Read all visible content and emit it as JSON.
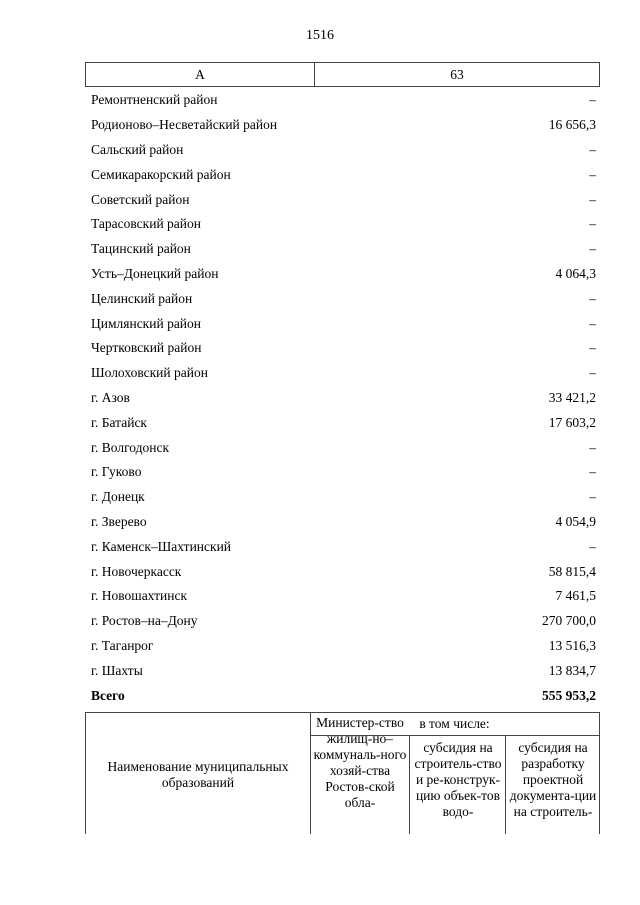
{
  "page_number": "1516",
  "header": {
    "col_a": "А",
    "col_b": "63"
  },
  "rows": [
    {
      "name": "Ремонтненский район",
      "value": "–"
    },
    {
      "name": "Родионово–Несветайский район",
      "value": "16 656,3"
    },
    {
      "name": "Сальский район",
      "value": "–"
    },
    {
      "name": "Семикаракорский район",
      "value": "–"
    },
    {
      "name": "Советский район",
      "value": "–"
    },
    {
      "name": "Тарасовский район",
      "value": "–"
    },
    {
      "name": "Тацинский район",
      "value": "–"
    },
    {
      "name": "Усть–Донецкий район",
      "value": "4 064,3"
    },
    {
      "name": "Целинский район",
      "value": "–"
    },
    {
      "name": "Цимлянский район",
      "value": "–"
    },
    {
      "name": "Чертковский район",
      "value": "–"
    },
    {
      "name": "Шолоховский район",
      "value": "–"
    },
    {
      "name": "г. Азов",
      "value": "33 421,2"
    },
    {
      "name": "г. Батайск",
      "value": "17 603,2"
    },
    {
      "name": "г. Волгодонск",
      "value": "–"
    },
    {
      "name": "г. Гуково",
      "value": "–"
    },
    {
      "name": "г. Донецк",
      "value": "–"
    },
    {
      "name": "г. Зверево",
      "value": "4 054,9"
    },
    {
      "name": "г. Каменск–Шахтинский",
      "value": "–"
    },
    {
      "name": "г. Новочеркасск",
      "value": "58 815,4"
    },
    {
      "name": "г. Новошахтинск",
      "value": "7 461,5"
    },
    {
      "name": "г. Ростов–на–Дону",
      "value": "270 700,0"
    },
    {
      "name": "г. Таганрог",
      "value": "13 516,3"
    },
    {
      "name": "г. Шахты",
      "value": "13 834,7"
    }
  ],
  "total": {
    "name": "Всего",
    "value": "555 953,2"
  },
  "table2": {
    "col_name": "Наименование муниципальных образований",
    "col_ministry": "Министер-ство жилищ-но–коммуналь-ного хозяй-ства Ростов-ской обла-",
    "col_including": "в том числе:",
    "col_sub1": "субсидия на строитель-ство и ре-конструк-цию объек-тов водо-",
    "col_sub2": "субсидия на разработку проектной документа-ции на строитель-"
  }
}
